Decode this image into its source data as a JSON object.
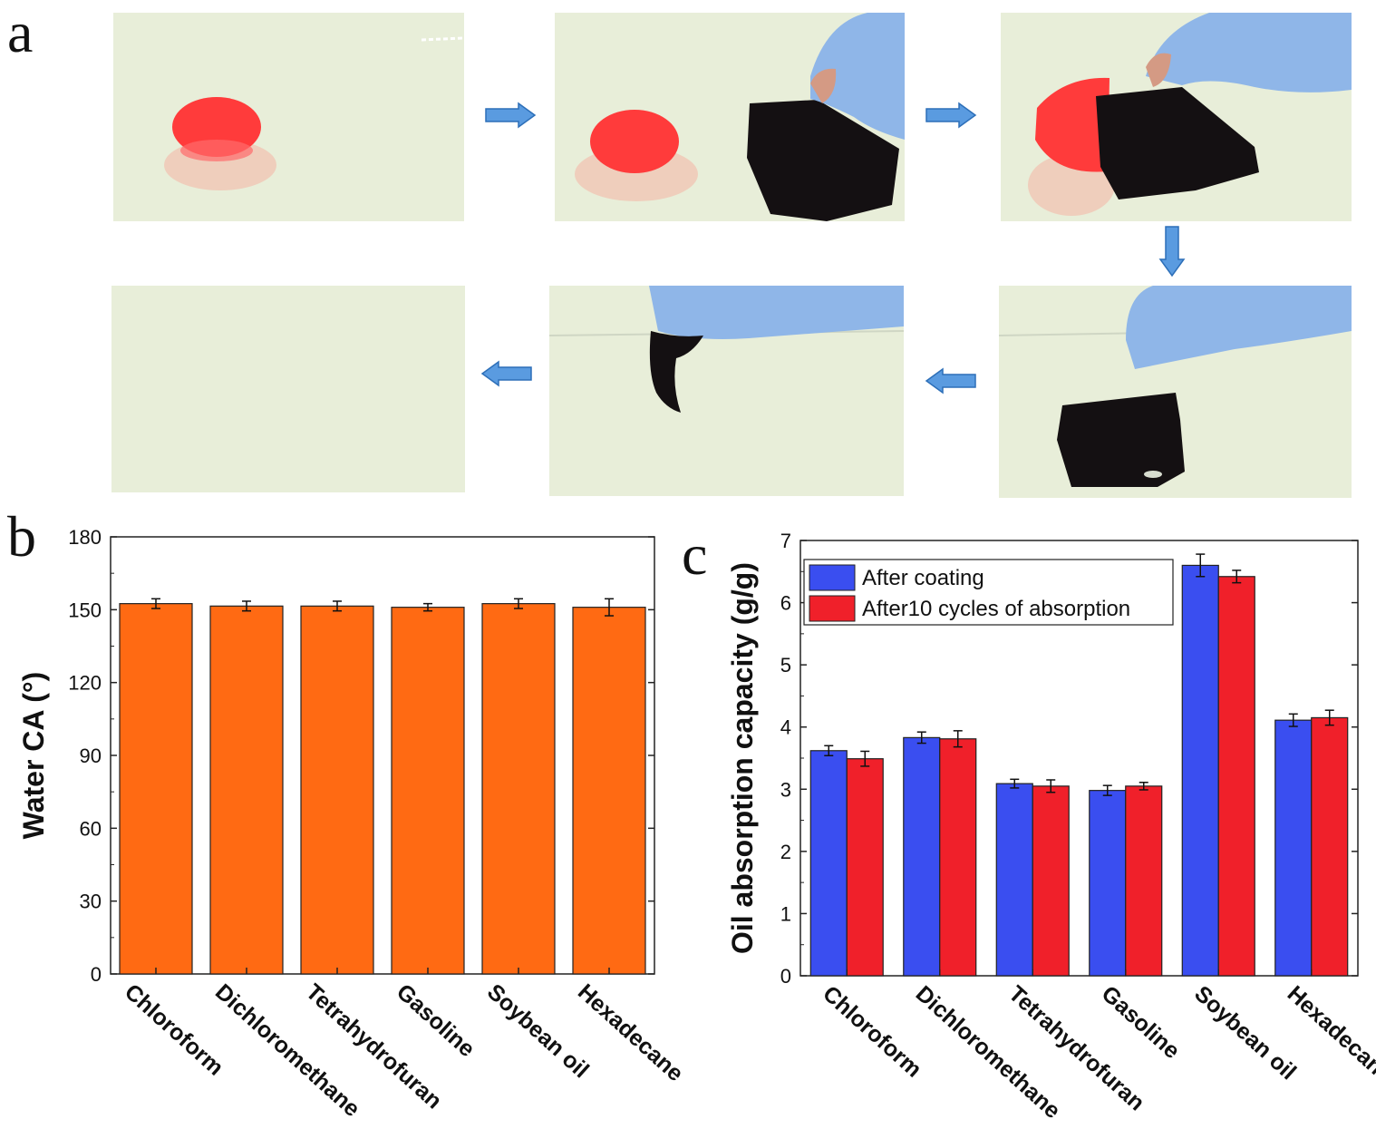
{
  "figure": {
    "panel_labels": [
      "a",
      "b",
      "c"
    ],
    "photos": [
      {
        "name": "droplet-initial",
        "content": "red-droplet"
      },
      {
        "name": "sponge-approaching",
        "content": "red-droplet-and-sponge"
      },
      {
        "name": "sponge-contact",
        "content": "droplet-absorbing"
      },
      {
        "name": "sponge-lifted",
        "content": "sponge-on-surface"
      },
      {
        "name": "sponge-removed",
        "content": "sponge-held"
      },
      {
        "name": "surface-clean",
        "content": "empty"
      }
    ],
    "colors": {
      "photo_bg": "#e9eedb",
      "droplet": "#ff3b3b",
      "sponge": "#141012",
      "glove": "#8fb6e8",
      "arrow": "#5a9be0",
      "bar_orange": "#ff6a13",
      "bar_blue": "#3a4ef0",
      "bar_red": "#f0202a"
    }
  },
  "chart_data": [
    {
      "type": "bar",
      "panel": "b",
      "title": "",
      "xlabel": "",
      "ylabel": "Water CA (°)",
      "ylim": [
        0,
        180
      ],
      "yticks": [
        0,
        30,
        60,
        90,
        120,
        150,
        180
      ],
      "categories": [
        "Chloroform",
        "Dichloromethane",
        "Tetrahydrofuran",
        "Gasoline",
        "Soybean oil",
        "Hexadecane"
      ],
      "series": [
        {
          "values": [
            152.5,
            151.5,
            151.5,
            151.0,
            152.5,
            151.0
          ],
          "errors": [
            2.0,
            2.0,
            2.0,
            1.5,
            2.0,
            3.5
          ],
          "color": "#ff6a13"
        }
      ],
      "grid": false
    },
    {
      "type": "bar",
      "panel": "c",
      "title": "",
      "xlabel": "",
      "ylabel": "Oil absorption capacity (g/g)",
      "ylim": [
        0,
        7
      ],
      "yticks": [
        0,
        1,
        2,
        3,
        4,
        5,
        6,
        7
      ],
      "categories": [
        "Chloroform",
        "Dichloromethane",
        "Tetrahydrofuran",
        "Gasoline",
        "Soybean oil",
        "Hexadecane"
      ],
      "series": [
        {
          "name": "After coating",
          "values": [
            3.62,
            3.83,
            3.09,
            2.98,
            6.6,
            4.11
          ],
          "errors": [
            0.08,
            0.09,
            0.07,
            0.08,
            0.18,
            0.1
          ],
          "color": "#3a4ef0"
        },
        {
          "name": "After10 cycles of absorption",
          "values": [
            3.49,
            3.81,
            3.05,
            3.05,
            6.42,
            4.15
          ],
          "errors": [
            0.12,
            0.13,
            0.1,
            0.06,
            0.1,
            0.12
          ],
          "color": "#f0202a"
        }
      ],
      "legend": "top-left",
      "grid": false
    }
  ]
}
